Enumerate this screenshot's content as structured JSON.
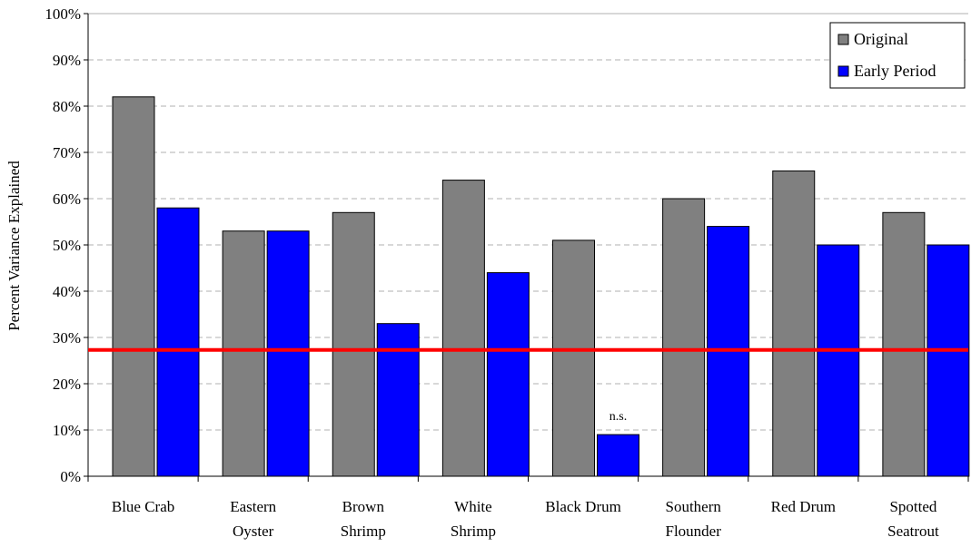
{
  "chart_data": {
    "type": "bar",
    "title": "",
    "xlabel": "",
    "ylabel": "Percent Variance Explained",
    "ylim": [
      0,
      100
    ],
    "yticks": [
      0,
      10,
      20,
      30,
      40,
      50,
      60,
      70,
      80,
      90,
      100
    ],
    "ytick_suffix": "%",
    "grid": "horizontal dashed",
    "legend_position": "top-right",
    "categories": [
      [
        "Blue Crab"
      ],
      [
        "Eastern",
        "Oyster"
      ],
      [
        "Brown",
        "Shrimp"
      ],
      [
        "White",
        "Shrimp"
      ],
      [
        "Black Drum"
      ],
      [
        "Southern",
        "Flounder"
      ],
      [
        "Red Drum"
      ],
      [
        "Spotted",
        "Seatrout"
      ]
    ],
    "series": [
      {
        "name": "Original",
        "color": "#808080",
        "values": [
          82,
          53,
          57,
          64,
          51,
          60,
          66,
          57
        ]
      },
      {
        "name": "Early Period",
        "color": "#0000ff",
        "values": [
          58,
          53,
          33,
          44,
          9,
          54,
          50,
          50
        ]
      }
    ],
    "reference_line": {
      "value": 27.3,
      "color": "#ff0000"
    },
    "annotations": [
      {
        "category_index": 4,
        "series_index": 1,
        "text": "n.s."
      }
    ]
  }
}
